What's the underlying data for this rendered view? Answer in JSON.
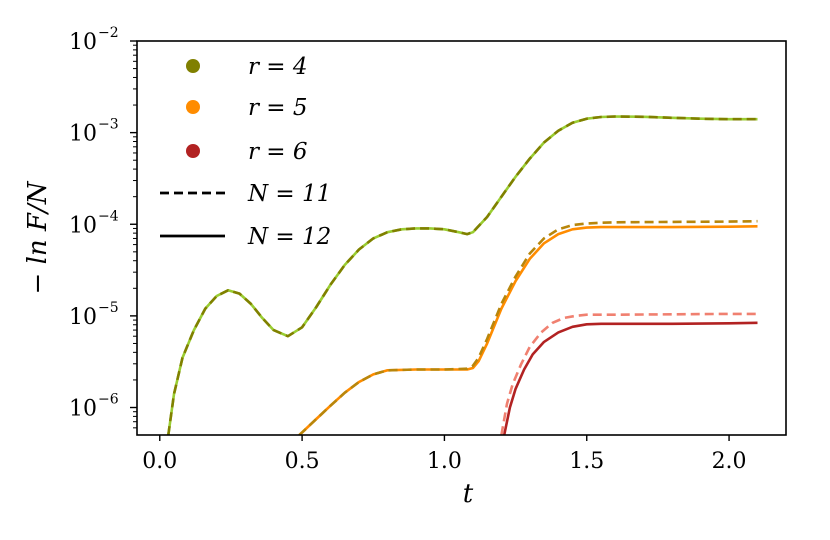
{
  "chart_data": {
    "type": "line",
    "xlabel": "t",
    "ylabel": "− ln F/N",
    "xlim": [
      -0.08,
      2.2
    ],
    "ylim_log10": [
      -6.3,
      -2
    ],
    "yscale": "log",
    "x_ticks": [
      {
        "value": 0.0,
        "label": "0.0"
      },
      {
        "value": 0.5,
        "label": "0.5"
      },
      {
        "value": 1.0,
        "label": "1.0"
      },
      {
        "value": 1.5,
        "label": "1.5"
      },
      {
        "value": 2.0,
        "label": "2.0"
      }
    ],
    "y_ticks": [
      {
        "exp": -6,
        "base": "10",
        "power": "−6"
      },
      {
        "exp": -5,
        "base": "10",
        "power": "−5"
      },
      {
        "exp": -4,
        "base": "10",
        "power": "−4"
      },
      {
        "exp": -3,
        "base": "10",
        "power": "−3"
      },
      {
        "exp": -2,
        "base": "10",
        "power": "−2"
      }
    ],
    "legend_location": "upper-left",
    "legend": [
      {
        "kind": "marker",
        "color": "#808000",
        "text": "r = 4"
      },
      {
        "kind": "marker",
        "color": "#FF8C00",
        "text": "r = 5"
      },
      {
        "kind": "marker",
        "color": "#B22222",
        "text": "r = 6"
      },
      {
        "kind": "line",
        "style": "dashed",
        "color": "#000000",
        "text": "N = 11"
      },
      {
        "kind": "line",
        "style": "solid",
        "color": "#000000",
        "text": "N = 12"
      }
    ],
    "series": [
      {
        "name": "r = 4, N = 12",
        "color": "#9ACD32",
        "dashed": false,
        "x": [
          0.03,
          0.05,
          0.08,
          0.12,
          0.16,
          0.2,
          0.24,
          0.28,
          0.32,
          0.36,
          0.4,
          0.45,
          0.5,
          0.55,
          0.6,
          0.65,
          0.7,
          0.75,
          0.8,
          0.85,
          0.9,
          0.95,
          1.0,
          1.05,
          1.08,
          1.1,
          1.15,
          1.2,
          1.25,
          1.3,
          1.35,
          1.4,
          1.45,
          1.5,
          1.55,
          1.6,
          1.7,
          1.8,
          1.9,
          2.0,
          2.1
        ],
        "y": [
          5e-07,
          1.4e-06,
          3.5e-06,
          7e-06,
          1.2e-05,
          1.65e-05,
          1.9e-05,
          1.75e-05,
          1.35e-05,
          9.5e-06,
          7e-06,
          6e-06,
          7.5e-06,
          1.25e-05,
          2.2e-05,
          3.6e-05,
          5.3e-05,
          7e-05,
          8.2e-05,
          8.8e-05,
          9e-05,
          9e-05,
          8.8e-05,
          8.2e-05,
          7.8e-05,
          8.2e-05,
          0.00012,
          0.0002,
          0.00033,
          0.00052,
          0.00078,
          0.00105,
          0.00128,
          0.00142,
          0.00148,
          0.0015,
          0.00149,
          0.00145,
          0.00142,
          0.0014,
          0.0014
        ]
      },
      {
        "name": "r = 4, N = 11",
        "color": "#808000",
        "dashed": true,
        "x": [
          0.03,
          0.05,
          0.08,
          0.12,
          0.16,
          0.2,
          0.24,
          0.28,
          0.32,
          0.36,
          0.4,
          0.45,
          0.5,
          0.55,
          0.6,
          0.65,
          0.7,
          0.75,
          0.8,
          0.85,
          0.9,
          0.95,
          1.0,
          1.05,
          1.08,
          1.1,
          1.15,
          1.2,
          1.25,
          1.3,
          1.35,
          1.4,
          1.45,
          1.5,
          1.55,
          1.6,
          1.7,
          1.8,
          1.9,
          2.0,
          2.1
        ],
        "y": [
          5e-07,
          1.4e-06,
          3.5e-06,
          7e-06,
          1.2e-05,
          1.65e-05,
          1.9e-05,
          1.75e-05,
          1.35e-05,
          9.5e-06,
          7e-06,
          6e-06,
          7.5e-06,
          1.25e-05,
          2.2e-05,
          3.6e-05,
          5.3e-05,
          7e-05,
          8.2e-05,
          8.8e-05,
          9e-05,
          9e-05,
          8.8e-05,
          8.2e-05,
          7.8e-05,
          8.2e-05,
          0.00012,
          0.0002,
          0.00033,
          0.00052,
          0.00078,
          0.00105,
          0.00128,
          0.00142,
          0.00148,
          0.0015,
          0.00149,
          0.00145,
          0.00142,
          0.0014,
          0.0014
        ]
      },
      {
        "name": "r = 5, N = 12",
        "color": "#FF8C00",
        "dashed": false,
        "x": [
          0.49,
          0.55,
          0.6,
          0.65,
          0.7,
          0.75,
          0.8,
          0.9,
          1.0,
          1.08,
          1.1,
          1.12,
          1.15,
          1.2,
          1.25,
          1.3,
          1.35,
          1.4,
          1.45,
          1.5,
          1.55,
          1.6,
          1.8,
          2.0,
          2.1
        ],
        "y": [
          5e-07,
          7.5e-07,
          1.05e-06,
          1.45e-06,
          1.9e-06,
          2.3e-06,
          2.55e-06,
          2.6e-06,
          2.6e-06,
          2.6e-06,
          2.7e-06,
          3.2e-06,
          5e-06,
          1.2e-05,
          2.4e-05,
          4.2e-05,
          6.2e-05,
          7.8e-05,
          8.8e-05,
          9.2e-05,
          9.3e-05,
          9.3e-05,
          9.3e-05,
          9.4e-05,
          9.5e-05
        ]
      },
      {
        "name": "r = 5, N = 11",
        "color": "#B8860B",
        "dashed": true,
        "x": [
          0.49,
          0.55,
          0.6,
          0.65,
          0.7,
          0.75,
          0.8,
          0.9,
          1.0,
          1.08,
          1.1,
          1.12,
          1.15,
          1.2,
          1.25,
          1.3,
          1.35,
          1.4,
          1.45,
          1.5,
          1.55,
          1.6,
          1.8,
          2.0,
          2.1
        ],
        "y": [
          5e-07,
          7.5e-07,
          1.05e-06,
          1.45e-06,
          1.9e-06,
          2.3e-06,
          2.55e-06,
          2.6e-06,
          2.6e-06,
          2.65e-06,
          2.85e-06,
          3.5e-06,
          5.6e-06,
          1.35e-05,
          2.7e-05,
          4.8e-05,
          7e-05,
          8.8e-05,
          9.8e-05,
          0.000102,
          0.000104,
          0.000105,
          0.000106,
          0.000107,
          0.000108
        ]
      },
      {
        "name": "r = 6, N = 12",
        "color": "#B22222",
        "dashed": false,
        "x": [
          1.21,
          1.23,
          1.25,
          1.28,
          1.31,
          1.35,
          1.4,
          1.45,
          1.5,
          1.55,
          1.6,
          1.8,
          2.0,
          2.1
        ],
        "y": [
          5e-07,
          1e-06,
          1.6e-06,
          2.6e-06,
          3.8e-06,
          5.2e-06,
          6.6e-06,
          7.6e-06,
          8.1e-06,
          8.2e-06,
          8.2e-06,
          8.2e-06,
          8.3e-06,
          8.4e-06
        ]
      },
      {
        "name": "r = 6, N = 11",
        "color": "#F08070",
        "dashed": true,
        "x": [
          1.2,
          1.22,
          1.24,
          1.27,
          1.3,
          1.34,
          1.38,
          1.42,
          1.46,
          1.5,
          1.55,
          1.6,
          1.8,
          2.0,
          2.1
        ],
        "y": [
          5e-07,
          1.1e-06,
          1.8e-06,
          3e-06,
          4.6e-06,
          6.6e-06,
          8.4e-06,
          9.5e-06,
          1e-05,
          1.03e-05,
          1.03e-05,
          1.03e-05,
          1.04e-05,
          1.05e-05,
          1.05e-05
        ]
      }
    ]
  }
}
